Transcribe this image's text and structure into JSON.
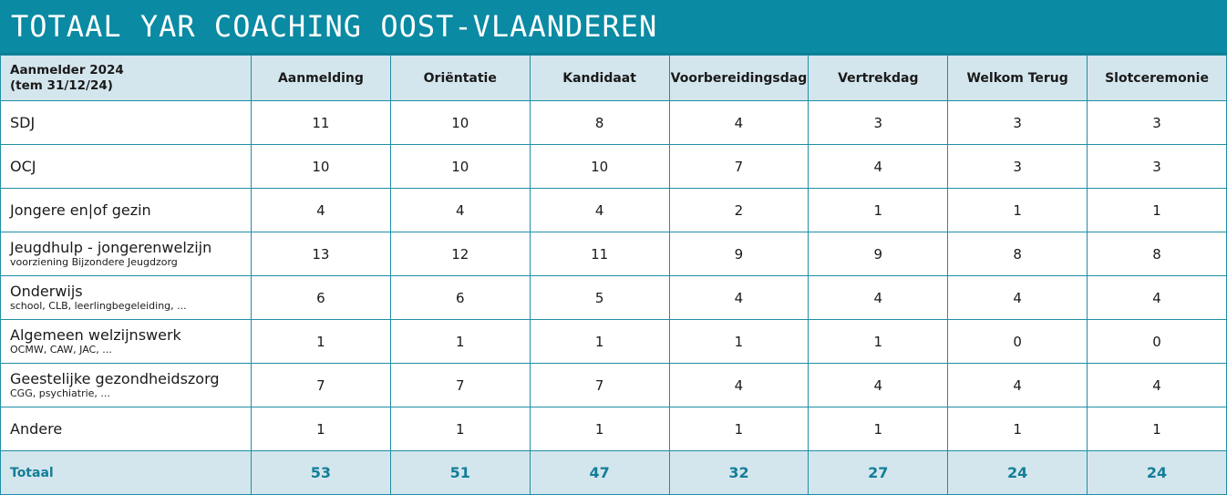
{
  "title": "TOTAAL YAR COACHING OOST-VLAANDEREN",
  "header": {
    "first_line1": "Aanmelder 2024",
    "first_line2": "(tem 31/12/24)",
    "columns": [
      "Aanmelding",
      "Oriëntatie",
      "Kandidaat",
      "Voorbereidingsdag",
      "Vertrekdag",
      "Welkom Terug",
      "Slotceremonie"
    ]
  },
  "rows": [
    {
      "label": "SDJ",
      "sub": "",
      "values": [
        "11",
        "10",
        "8",
        "4",
        "3",
        "3",
        "3"
      ]
    },
    {
      "label": "OCJ",
      "sub": "",
      "values": [
        "10",
        "10",
        "10",
        "7",
        "4",
        "3",
        "3"
      ]
    },
    {
      "label": "Jongere en|of gezin",
      "sub": "",
      "values": [
        "4",
        "4",
        "4",
        "2",
        "1",
        "1",
        "1"
      ]
    },
    {
      "label": "Jeugdhulp - jongerenwelzijn",
      "sub": "voorziening Bijzondere Jeugdzorg",
      "values": [
        "13",
        "12",
        "11",
        "9",
        "9",
        "8",
        "8"
      ]
    },
    {
      "label": "Onderwijs",
      "sub": "school, CLB, leerlingbegeleiding, ...",
      "values": [
        "6",
        "6",
        "5",
        "4",
        "4",
        "4",
        "4"
      ]
    },
    {
      "label": "Algemeen welzijnswerk",
      "sub": "OCMW, CAW, JAC, ...",
      "values": [
        "1",
        "1",
        "1",
        "1",
        "1",
        "0",
        "0"
      ]
    },
    {
      "label": "Geestelijke gezondheidszorg",
      "sub": "CGG, psychiatrie, ...",
      "values": [
        "7",
        "7",
        "7",
        "4",
        "4",
        "4",
        "4"
      ]
    },
    {
      "label": "Andere",
      "sub": "",
      "values": [
        "1",
        "1",
        "1",
        "1",
        "1",
        "1",
        "1"
      ]
    }
  ],
  "total": {
    "label": "Totaal",
    "values": [
      "53",
      "51",
      "47",
      "32",
      "27",
      "24",
      "24"
    ]
  },
  "colors": {
    "banner": "#0a8aa3",
    "header_bg": "#d4e6ed",
    "border": "#1f8ea5",
    "total_text": "#137e97"
  }
}
